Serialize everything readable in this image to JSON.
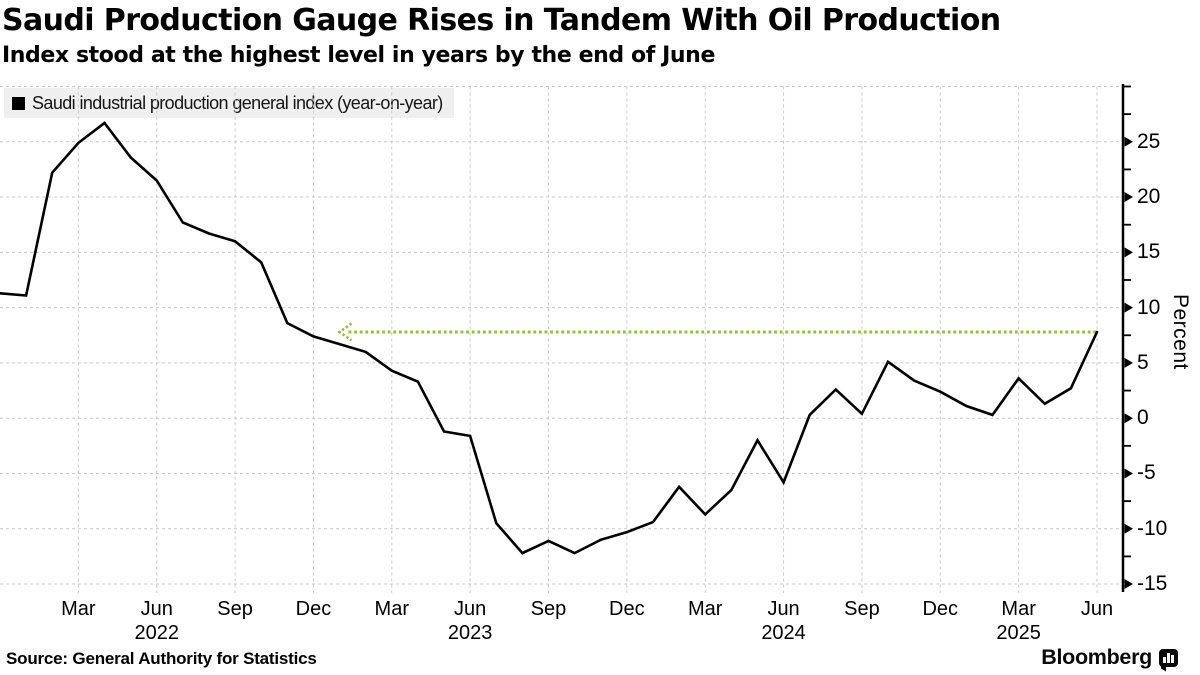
{
  "header": {
    "title": "Saudi Production Gauge Rises in Tandem With Oil Production",
    "subtitle": "Index stood at the highest level in years by the end of June"
  },
  "legend": {
    "label": "Saudi industrial production general index (year-on-year)"
  },
  "y_axis": {
    "label": "Percent",
    "major_ticks": [
      25,
      20,
      15,
      10,
      5,
      0,
      -5,
      -10,
      -15
    ],
    "minor_ticks": [
      30,
      27.5,
      22.5,
      17.5,
      12.5,
      7.5,
      2.5,
      -2.5,
      -7.5,
      -12.5
    ],
    "range": [
      -15,
      30
    ]
  },
  "x_axis": {
    "tick_labels": [
      {
        "text": "Mar",
        "i": 3
      },
      {
        "text": "Jun",
        "i": 6
      },
      {
        "text": "Sep",
        "i": 9
      },
      {
        "text": "Dec",
        "i": 12
      },
      {
        "text": "Mar",
        "i": 15
      },
      {
        "text": "Jun",
        "i": 18
      },
      {
        "text": "Sep",
        "i": 21
      },
      {
        "text": "Dec",
        "i": 24
      },
      {
        "text": "Mar",
        "i": 27
      },
      {
        "text": "Jun",
        "i": 30
      },
      {
        "text": "Sep",
        "i": 33
      },
      {
        "text": "Dec",
        "i": 36
      },
      {
        "text": "Mar",
        "i": 39
      },
      {
        "text": "Jun",
        "i": 42
      }
    ],
    "year_labels": [
      {
        "text": "2022",
        "i": 6
      },
      {
        "text": "2023",
        "i": 18
      },
      {
        "text": "2024",
        "i": 30
      },
      {
        "text": "2025",
        "i": 39
      }
    ]
  },
  "chart_data": {
    "type": "line",
    "series_name": "Saudi industrial production general index (year-on-year)",
    "x_start": "2021-12",
    "x_end": "2025-06",
    "frequency": "monthly",
    "values": [
      11.3,
      11.1,
      22.2,
      24.9,
      26.7,
      23.6,
      21.5,
      17.7,
      16.7,
      16.0,
      14.1,
      8.6,
      7.4,
      6.7,
      6.0,
      4.3,
      3.3,
      -1.2,
      -1.6,
      -9.5,
      -12.2,
      -11.1,
      -12.2,
      -11.0,
      -10.3,
      -9.4,
      -6.2,
      -8.7,
      -6.5,
      -2.0,
      -5.8,
      0.3,
      2.6,
      0.4,
      5.1,
      3.4,
      2.4,
      1.1,
      0.3,
      3.6,
      1.3,
      2.7,
      7.8
    ],
    "ylabel": "Percent",
    "ylim": [
      -15,
      30
    ],
    "grid": true,
    "reference_line": {
      "value": 7.8,
      "start_index": 13,
      "end_index": 42,
      "style": "dotted",
      "arrow": "left"
    }
  },
  "footer": {
    "source": "Source: General Authority for Statistics",
    "brand": "Bloomberg"
  },
  "colors": {
    "line": "#000000",
    "reference": "#8ec42a",
    "grid": "#c9c9c9",
    "legend_bg": "#efefef"
  }
}
